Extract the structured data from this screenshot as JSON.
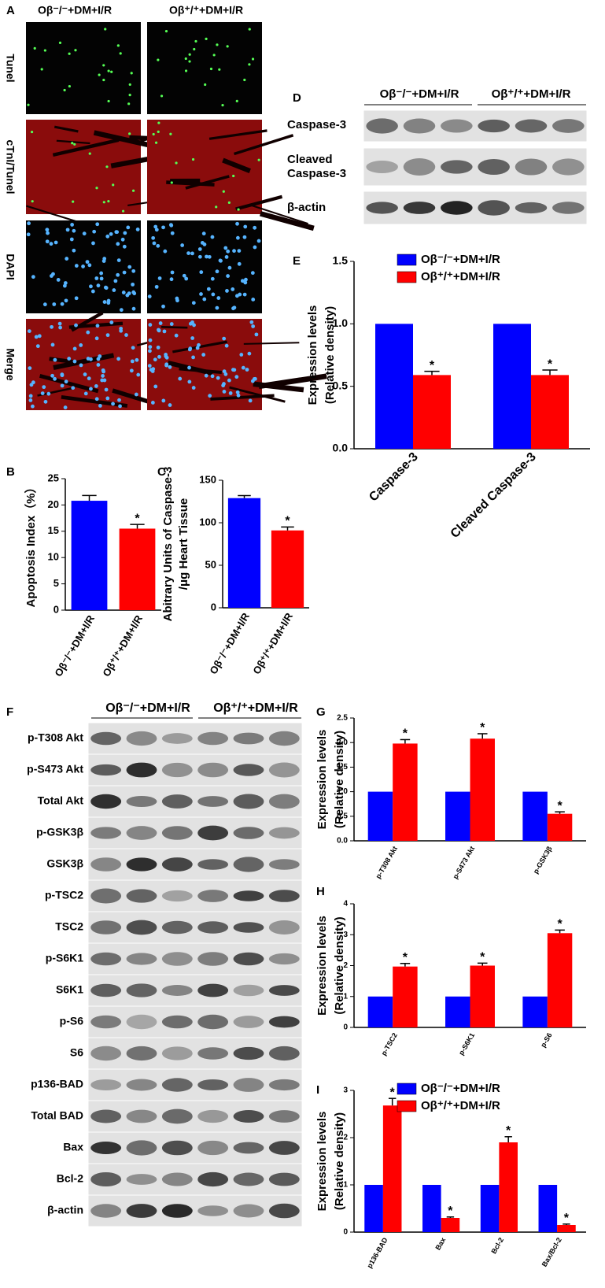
{
  "figure": {
    "panel_labels": [
      "A",
      "B",
      "C",
      "D",
      "E",
      "F",
      "G",
      "H",
      "I"
    ],
    "panel_a": {
      "groups": [
        "Oβ⁻/⁻+DM+I/R",
        "Oβ⁺/⁺+DM+I/R"
      ],
      "stains": [
        "Tunel",
        "cTnI/Tunel",
        "DAPI",
        "Merge"
      ]
    },
    "panel_d": {
      "groups": [
        "Oβ⁻/⁻+DM+I/R",
        "Oβ⁺/⁺+DM+I/R"
      ],
      "rows": [
        "Caspase-3",
        "Cleaved Caspase-3",
        "β-actin"
      ]
    },
    "panel_f": {
      "groups": [
        "Oβ⁻/⁻+DM+I/R",
        "Oβ⁺/⁺+DM+I/R"
      ],
      "rows": [
        "p-T308 Akt",
        "p-S473 Akt",
        "Total Akt",
        "p-GSK3β",
        "GSK3β",
        "p-TSC2",
        "TSC2",
        "p-S6K1",
        "S6K1",
        "p-S6",
        "S6",
        "p136-BAD",
        "Total BAD",
        "Bax",
        "Bcl-2",
        "β-actin"
      ]
    }
  },
  "chart_data": [
    {
      "type": "bar",
      "ylabel": [
        "Apoptosis Index（%）"
      ],
      "categories": [
        "Oβ⁻/⁻+DM+I/R",
        "Oβ⁺/⁺+DM+I/R"
      ],
      "values": [
        20.8,
        15.5
      ],
      "errors": [
        1.0,
        0.8
      ],
      "colors": [
        "#0000ff",
        "#ff0000"
      ],
      "annotations": [
        null,
        "*"
      ],
      "ylim": [
        0,
        25
      ],
      "yticks": [
        0,
        5,
        10,
        15,
        20,
        25
      ]
    },
    {
      "type": "bar",
      "ylabel": [
        "Abitrary Units of Caspase-3",
        "/μg Heart Tissue"
      ],
      "categories": [
        "Oβ⁻/⁻+DM+I/R",
        "Oβ⁺/⁺+DM+I/R"
      ],
      "values": [
        129,
        91
      ],
      "errors": [
        3,
        4
      ],
      "colors": [
        "#0000ff",
        "#ff0000"
      ],
      "annotations": [
        null,
        "*"
      ],
      "ylim": [
        0,
        150
      ],
      "yticks": [
        0,
        50,
        100,
        150
      ]
    },
    {
      "type": "bar",
      "ylabel": [
        "Expression levels",
        "(Relative density)"
      ],
      "categories": [
        "Caspase-3",
        "Cleaved Caspase-3"
      ],
      "series": [
        {
          "name": "Oβ⁻/⁻+DM+I/R",
          "color": "#0000ff",
          "values": [
            1,
            1
          ],
          "errors": [
            0,
            0
          ],
          "annotations": [
            null,
            null
          ]
        },
        {
          "name": "Oβ⁺/⁺+DM+I/R",
          "color": "#ff0000",
          "values": [
            0.59,
            0.59
          ],
          "errors": [
            0.03,
            0.04
          ],
          "annotations": [
            "*",
            "*"
          ]
        }
      ],
      "ylim": [
        0,
        1.5
      ],
      "yticks": [
        {
          "value": 0,
          "label": "0.0"
        },
        {
          "value": 0.5,
          "label": "0.5"
        },
        {
          "value": 1,
          "label": "1.0"
        },
        {
          "value": 1.5,
          "label": "1.5"
        }
      ],
      "legend": "top"
    },
    {
      "type": "bar",
      "ylabel": [
        "Expression levels",
        "(Relative density)"
      ],
      "categories": [
        "p-T308 Akt",
        "p-S473 Akt",
        "p-GSK3β"
      ],
      "series": [
        {
          "name": "Oβ⁻/⁻+DM+I/R",
          "color": "#0000ff",
          "values": [
            1,
            1,
            1
          ],
          "errors": [
            0,
            0,
            0
          ],
          "annotations": [
            null,
            null,
            null
          ]
        },
        {
          "name": "Oβ⁺/⁺+DM+I/R",
          "color": "#ff0000",
          "values": [
            1.98,
            2.08,
            0.55
          ],
          "errors": [
            0.08,
            0.1,
            0.04
          ],
          "annotations": [
            "*",
            "*",
            "*"
          ]
        }
      ],
      "ylim": [
        0,
        2.5
      ],
      "yticks": [
        {
          "value": 0,
          "label": "0.0"
        },
        {
          "value": 0.5,
          "label": "0.5"
        },
        {
          "value": 1,
          "label": "1.0"
        },
        {
          "value": 1.5,
          "label": "1.5"
        },
        {
          "value": 2,
          "label": "2.0"
        },
        {
          "value": 2.5,
          "label": "2.5"
        }
      ]
    },
    {
      "type": "bar",
      "ylabel": [
        "Expression levels",
        "(Relative density)"
      ],
      "categories": [
        "p-TSC2",
        "p-S6K1",
        "p-S6"
      ],
      "series": [
        {
          "name": "Oβ⁻/⁻+DM+I/R",
          "color": "#0000ff",
          "values": [
            1,
            1,
            1
          ],
          "errors": [
            0,
            0,
            0
          ],
          "annotations": [
            null,
            null,
            null
          ]
        },
        {
          "name": "Oβ⁺/⁺+DM+I/R",
          "color": "#ff0000",
          "values": [
            1.97,
            2.0,
            3.05
          ],
          "errors": [
            0.1,
            0.08,
            0.1
          ],
          "annotations": [
            "*",
            "*",
            "*"
          ]
        }
      ],
      "ylim": [
        0,
        4
      ],
      "yticks": [
        0,
        1,
        2,
        3,
        4
      ]
    },
    {
      "type": "bar",
      "ylabel": [
        "Expression levels",
        "(Relative density)"
      ],
      "categories": [
        "p136-BAD",
        "Bax",
        "Bcl-2",
        "Bax/Bcl-2"
      ],
      "series": [
        {
          "name": "Oβ⁻/⁻+DM+I/R",
          "color": "#0000ff",
          "values": [
            1,
            1,
            1,
            1
          ],
          "errors": [
            0,
            0,
            0,
            0
          ],
          "annotations": [
            null,
            null,
            null,
            null
          ]
        },
        {
          "name": "Oβ⁺/⁺+DM+I/R",
          "color": "#ff0000",
          "values": [
            2.68,
            0.3,
            1.9,
            0.15
          ],
          "errors": [
            0.15,
            0.02,
            0.12,
            0.02
          ],
          "annotations": [
            "*",
            "*",
            "*",
            "*"
          ]
        }
      ],
      "ylim": [
        0,
        3
      ],
      "yticks": [
        0,
        1,
        2,
        3
      ],
      "legend": "top"
    }
  ]
}
